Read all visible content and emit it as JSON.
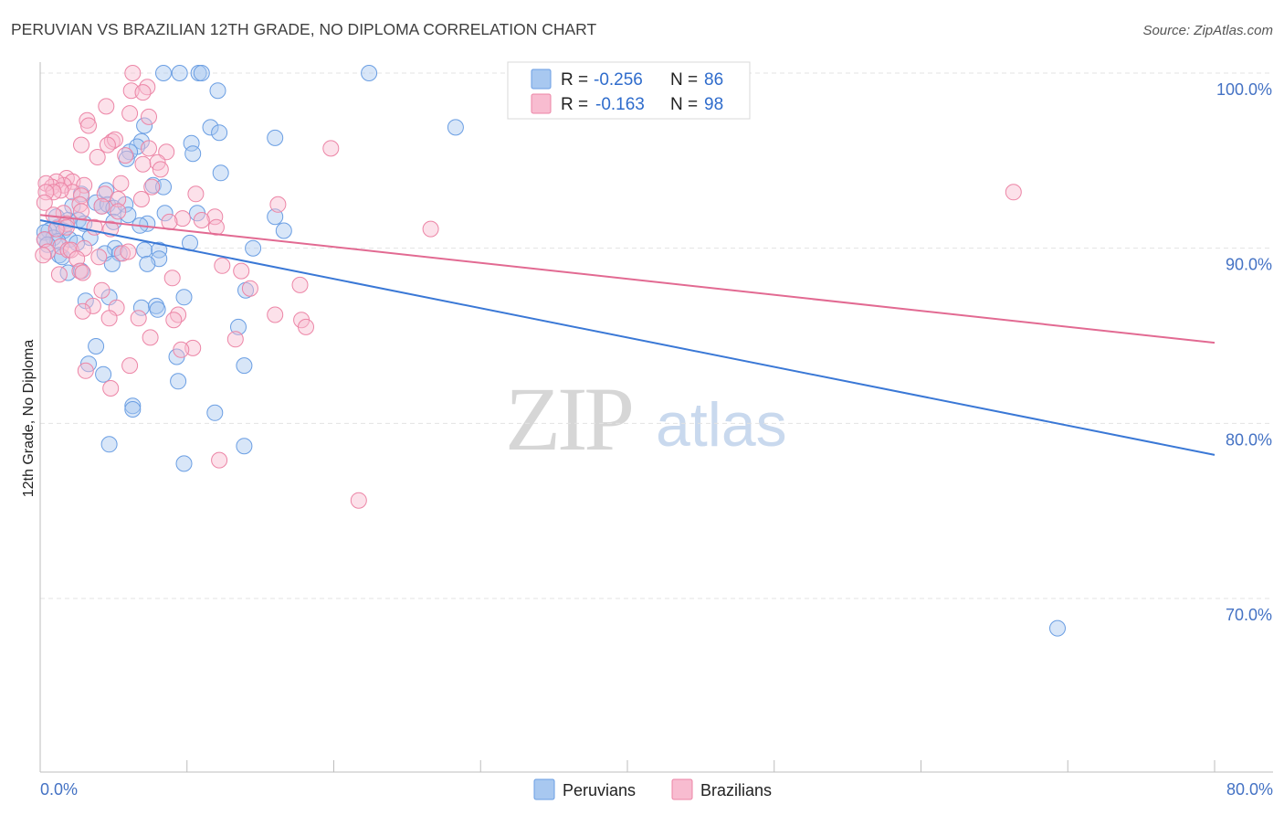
{
  "chart_data": {
    "type": "scatter",
    "title": "PERUVIAN VS BRAZILIAN 12TH GRADE, NO DIPLOMA CORRELATION CHART",
    "source": "Source: ZipAtlas.com",
    "xlabel": "",
    "ylabel": "12th Grade, No Diploma",
    "xlim": [
      0,
      80
    ],
    "ylim": [
      60.5,
      101.5
    ],
    "x_tick_labels": {
      "min": "0.0%",
      "max": "80.0%"
    },
    "y_ticks": [
      {
        "value": 100,
        "label": "100.0%"
      },
      {
        "value": 90,
        "label": "90.0%"
      },
      {
        "value": 80,
        "label": "80.0%"
      },
      {
        "value": 70,
        "label": "70.0%"
      }
    ],
    "watermark": {
      "zip": "ZIP",
      "atlas": "atlas"
    },
    "legend": {
      "r_label": "R =",
      "n_label": "N =",
      "entries": [
        {
          "name": "Peruvians",
          "r": "-0.256",
          "n": "86"
        },
        {
          "name": "Brazilians",
          "r": "-0.163",
          "n": "98"
        }
      ]
    },
    "series": [
      {
        "name": "Peruvians",
        "color": "#6a9ee3",
        "fill": "#a8c8f0",
        "line_color": "#3a78d6",
        "trend": {
          "x": [
            0,
            80
          ],
          "y": [
            91.6,
            78.2
          ]
        },
        "points": [
          [
            8.4,
            100
          ],
          [
            9.5,
            100
          ],
          [
            10.8,
            100
          ],
          [
            11,
            100
          ],
          [
            22.4,
            100
          ],
          [
            12.1,
            99
          ],
          [
            7.1,
            97
          ],
          [
            11.6,
            96.9
          ],
          [
            12.2,
            96.6
          ],
          [
            28.3,
            96.9
          ],
          [
            16,
            96.3
          ],
          [
            6.9,
            96.1
          ],
          [
            10.3,
            96
          ],
          [
            6.6,
            95.8
          ],
          [
            10.4,
            95.4
          ],
          [
            6.1,
            95.5
          ],
          [
            5.9,
            95.1
          ],
          [
            12.3,
            94.3
          ],
          [
            7.7,
            93.6
          ],
          [
            8.4,
            93.5
          ],
          [
            4.5,
            93.3
          ],
          [
            2.8,
            93.1
          ],
          [
            3.8,
            92.6
          ],
          [
            2.2,
            92.4
          ],
          [
            4.2,
            92.4
          ],
          [
            4.6,
            92.5
          ],
          [
            5,
            92.3
          ],
          [
            5.8,
            92.5
          ],
          [
            8.5,
            92
          ],
          [
            10.7,
            92
          ],
          [
            16,
            91.8
          ],
          [
            6,
            91.9
          ],
          [
            5,
            91.5
          ],
          [
            1.9,
            91.6
          ],
          [
            2.6,
            91.6
          ],
          [
            3,
            91.4
          ],
          [
            7.3,
            91.4
          ],
          [
            6.8,
            91.3
          ],
          [
            1.2,
            91.2
          ],
          [
            1.6,
            91
          ],
          [
            0.6,
            91
          ],
          [
            0.3,
            90.9
          ],
          [
            16.6,
            91
          ],
          [
            0.9,
            90.6
          ],
          [
            0.3,
            90.5
          ],
          [
            3.4,
            90.6
          ],
          [
            2,
            90.5
          ],
          [
            1.2,
            90.4
          ],
          [
            10.2,
            90.3
          ],
          [
            0.5,
            90.2
          ],
          [
            5.1,
            90
          ],
          [
            7.1,
            89.9
          ],
          [
            8.1,
            89.9
          ],
          [
            14.5,
            90
          ],
          [
            1.3,
            89.6
          ],
          [
            1.5,
            89.5
          ],
          [
            4.4,
            89.7
          ],
          [
            5.4,
            89.7
          ],
          [
            8.1,
            89.4
          ],
          [
            7.3,
            89.1
          ],
          [
            4.9,
            89.1
          ],
          [
            1.9,
            88.6
          ],
          [
            2.8,
            88.7
          ],
          [
            14,
            87.6
          ],
          [
            4.7,
            87.2
          ],
          [
            3.1,
            87
          ],
          [
            9.8,
            87.2
          ],
          [
            6.9,
            86.6
          ],
          [
            7.9,
            86.7
          ],
          [
            8,
            86.5
          ],
          [
            13.5,
            85.5
          ],
          [
            3.8,
            84.4
          ],
          [
            9.3,
            83.8
          ],
          [
            3.3,
            83.4
          ],
          [
            13.9,
            83.3
          ],
          [
            4.3,
            82.8
          ],
          [
            9.4,
            82.4
          ],
          [
            6.3,
            81
          ],
          [
            6.3,
            80.8
          ],
          [
            11.9,
            80.6
          ],
          [
            4.7,
            78.8
          ],
          [
            13.9,
            78.7
          ],
          [
            9.8,
            77.7
          ],
          [
            69.3,
            68.3
          ],
          [
            2.5,
            90.3
          ],
          [
            1.1,
            91.8
          ]
        ]
      },
      {
        "name": "Brazilians",
        "color": "#ec85a6",
        "fill": "#f8bcd0",
        "line_color": "#e26a92",
        "trend": {
          "x": [
            0,
            80
          ],
          "y": [
            91.9,
            84.6
          ]
        },
        "points": [
          [
            6.3,
            100
          ],
          [
            7.3,
            99.2
          ],
          [
            6.2,
            99
          ],
          [
            7,
            98.9
          ],
          [
            4.5,
            98.1
          ],
          [
            7.4,
            97.5
          ],
          [
            6.1,
            97.7
          ],
          [
            3.2,
            97.3
          ],
          [
            3.3,
            97
          ],
          [
            4.9,
            96.1
          ],
          [
            5.1,
            96.2
          ],
          [
            4.6,
            95.9
          ],
          [
            2.8,
            95.9
          ],
          [
            7.4,
            95.7
          ],
          [
            8.6,
            95.5
          ],
          [
            19.8,
            95.7
          ],
          [
            5.8,
            95.3
          ],
          [
            3.9,
            95.2
          ],
          [
            7,
            94.8
          ],
          [
            8,
            94.9
          ],
          [
            8.2,
            94.5
          ],
          [
            5.5,
            93.7
          ],
          [
            7.6,
            93.5
          ],
          [
            1.8,
            94
          ],
          [
            2.2,
            93.8
          ],
          [
            3,
            93.6
          ],
          [
            1.6,
            93.6
          ],
          [
            1.1,
            93.8
          ],
          [
            0.8,
            93.5
          ],
          [
            0.4,
            93.7
          ],
          [
            2.2,
            93.2
          ],
          [
            1.4,
            93.3
          ],
          [
            0.9,
            93.2
          ],
          [
            0.4,
            93.2
          ],
          [
            0.3,
            92.6
          ],
          [
            2.8,
            93
          ],
          [
            4.4,
            93.1
          ],
          [
            10.6,
            93.1
          ],
          [
            6.9,
            92.8
          ],
          [
            5.3,
            92.8
          ],
          [
            2.7,
            92.5
          ],
          [
            4.2,
            92.4
          ],
          [
            16.2,
            92.5
          ],
          [
            2.8,
            92.1
          ],
          [
            1.6,
            92
          ],
          [
            0.9,
            91.9
          ],
          [
            5.3,
            92.1
          ],
          [
            11.9,
            91.8
          ],
          [
            9.7,
            91.7
          ],
          [
            11,
            91.6
          ],
          [
            1.8,
            91.4
          ],
          [
            1.8,
            91.2
          ],
          [
            3.7,
            91.2
          ],
          [
            1.1,
            91.1
          ],
          [
            4.8,
            91.1
          ],
          [
            12,
            91.2
          ],
          [
            26.6,
            91.1
          ],
          [
            0.3,
            90.5
          ],
          [
            1.4,
            90.1
          ],
          [
            1.9,
            89.9
          ],
          [
            2.1,
            89.9
          ],
          [
            3,
            90
          ],
          [
            5.6,
            89.7
          ],
          [
            0.5,
            89.8
          ],
          [
            0.2,
            89.6
          ],
          [
            2.5,
            89.4
          ],
          [
            4,
            89.5
          ],
          [
            6,
            89.8
          ],
          [
            12.4,
            89
          ],
          [
            2.7,
            88.7
          ],
          [
            2.9,
            88.6
          ],
          [
            13.7,
            88.7
          ],
          [
            9,
            88.3
          ],
          [
            17.7,
            87.9
          ],
          [
            14.3,
            87.7
          ],
          [
            4.2,
            87.6
          ],
          [
            5.2,
            86.6
          ],
          [
            3.6,
            86.7
          ],
          [
            2.9,
            86.4
          ],
          [
            4.7,
            86
          ],
          [
            6.7,
            86
          ],
          [
            9.4,
            86.2
          ],
          [
            9.1,
            85.9
          ],
          [
            16,
            86.2
          ],
          [
            17.8,
            85.9
          ],
          [
            18.1,
            85.5
          ],
          [
            7.5,
            84.9
          ],
          [
            13.3,
            84.8
          ],
          [
            10.4,
            84.3
          ],
          [
            9.6,
            84.2
          ],
          [
            6.1,
            83.3
          ],
          [
            3.1,
            83
          ],
          [
            4.8,
            82
          ],
          [
            12.2,
            77.9
          ],
          [
            21.7,
            75.6
          ],
          [
            66.3,
            93.2
          ],
          [
            1.3,
            88.5
          ],
          [
            8.8,
            91.5
          ]
        ]
      }
    ]
  }
}
